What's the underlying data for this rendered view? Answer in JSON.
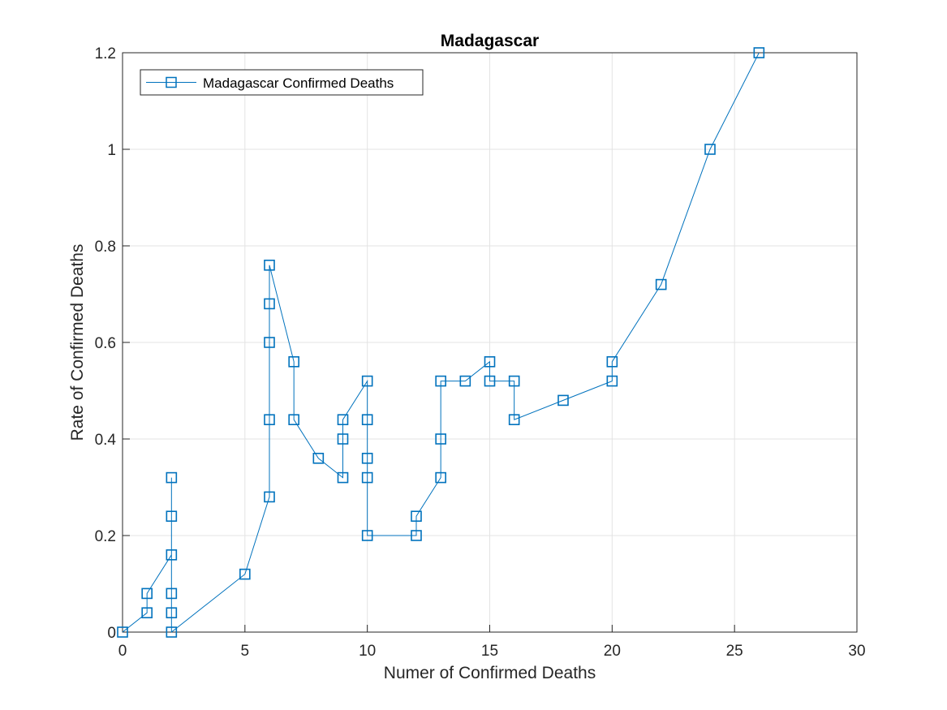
{
  "chart_data": {
    "type": "line",
    "title": "Madagascar",
    "xlabel": "Numer of Confirmed Deaths",
    "ylabel": "Rate of Confirmed Deaths",
    "xlim": [
      0,
      30
    ],
    "ylim": [
      0,
      1.2
    ],
    "xticks": [
      0,
      5,
      10,
      15,
      20,
      25,
      30
    ],
    "xtick_labels": [
      "0",
      "5",
      "10",
      "15",
      "20",
      "25",
      "30"
    ],
    "yticks": [
      0,
      0.2,
      0.4,
      0.6,
      0.8,
      1,
      1.2
    ],
    "ytick_labels": [
      "0",
      "0.2",
      "0.4",
      "0.6",
      "0.8",
      "1",
      "1.2"
    ],
    "grid": true,
    "legend_position": "top-left",
    "series": [
      {
        "name": "Madagascar Confirmed Deaths",
        "color": "#0072bd",
        "marker": "square",
        "x": [
          0,
          1,
          1,
          2,
          2,
          2,
          2,
          2,
          2,
          5,
          6,
          6,
          6,
          6,
          6,
          7,
          7,
          8,
          9,
          9,
          9,
          10,
          10,
          10,
          10,
          10,
          12,
          12,
          13,
          13,
          13,
          14,
          15,
          15,
          16,
          16,
          18,
          20,
          20,
          22,
          24,
          26
        ],
        "y": [
          0,
          0.04,
          0.08,
          0.16,
          0.24,
          0.32,
          0.08,
          0.04,
          0,
          0.12,
          0.28,
          0.44,
          0.6,
          0.68,
          0.76,
          0.56,
          0.44,
          0.36,
          0.32,
          0.4,
          0.44,
          0.52,
          0.44,
          0.36,
          0.32,
          0.2,
          0.2,
          0.24,
          0.32,
          0.4,
          0.52,
          0.52,
          0.56,
          0.52,
          0.52,
          0.44,
          0.48,
          0.52,
          0.56,
          0.72,
          1.0,
          1.2
        ]
      }
    ]
  }
}
